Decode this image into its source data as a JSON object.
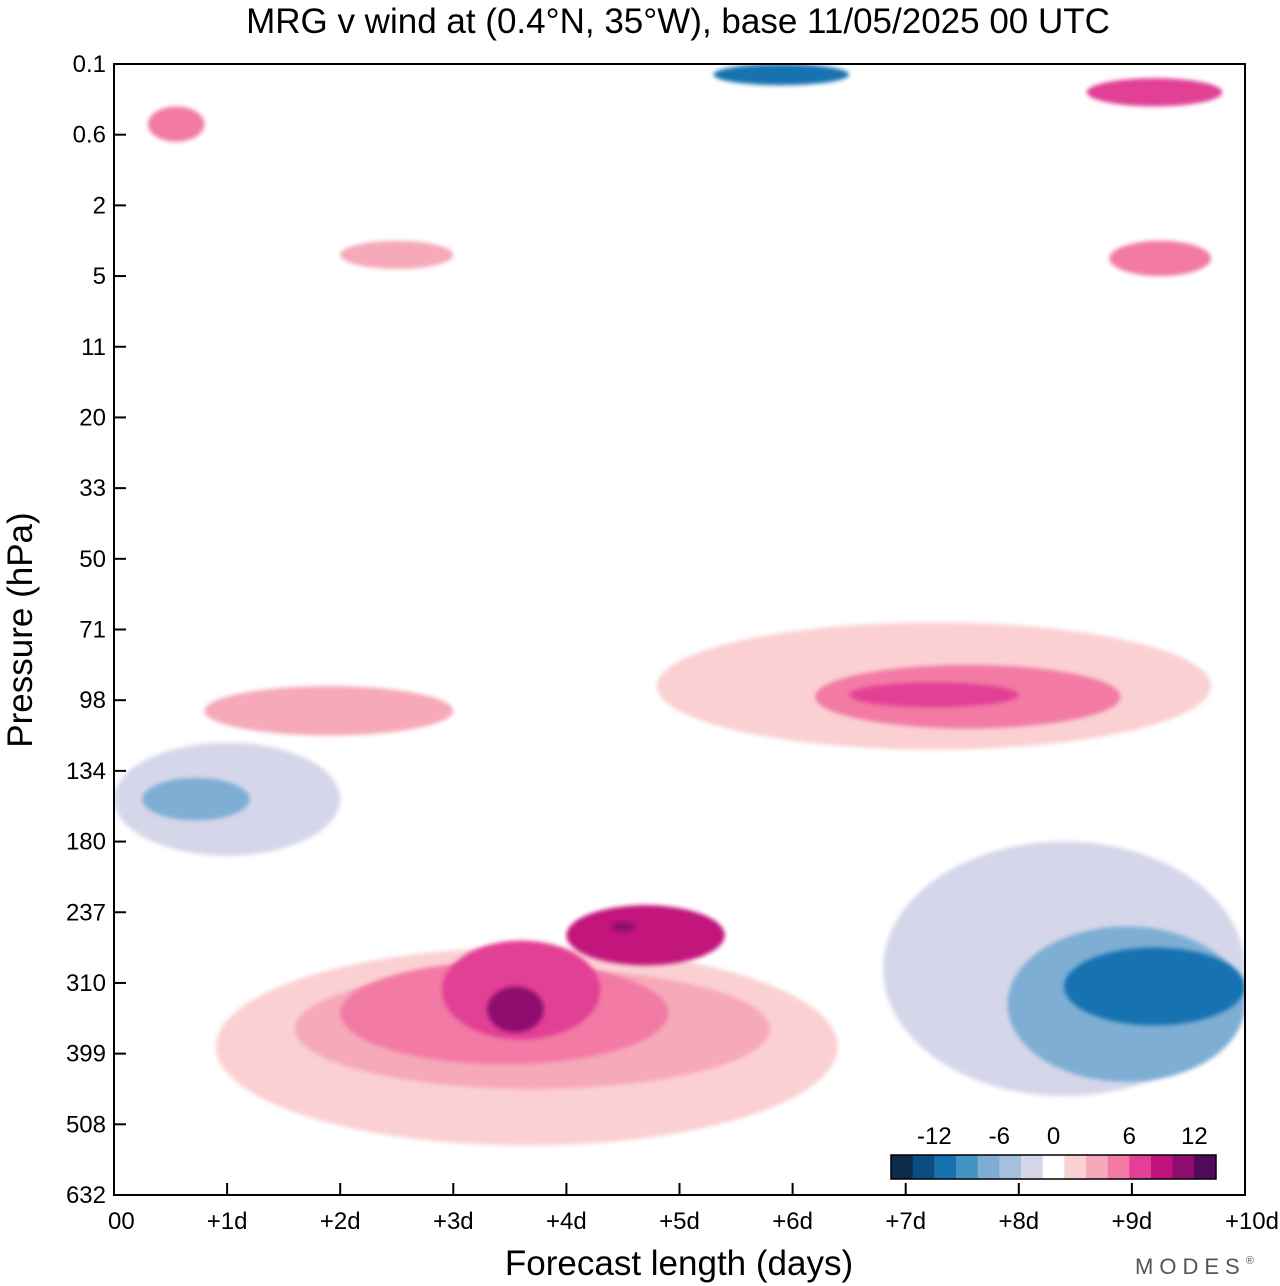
{
  "chart_data": {
    "type": "heatmap",
    "subtype": "filled-contour",
    "title": "MRG v wind at (0.4°N, 35°W),  base 11/05/2025  00 UTC",
    "xlabel": "Forecast length (days)",
    "ylabel": "Pressure (hPa)",
    "x_ticks": [
      "00",
      "+1d",
      "+2d",
      "+3d",
      "+4d",
      "+5d",
      "+6d",
      "+7d",
      "+8d",
      "+9d",
      "+10d"
    ],
    "y_ticks": [
      "0.1",
      "0.6",
      "2",
      "5",
      "11",
      "20",
      "33",
      "50",
      "71",
      "98",
      "134",
      "180",
      "237",
      "310",
      "399",
      "508",
      "632"
    ],
    "xlim": [
      0,
      10
    ],
    "y_axis": "pressure, reversed (top = 0.1 hPa, bottom = 632 hPa)",
    "colorbar": {
      "tick_labels": [
        "-12",
        "-6",
        "0",
        "6",
        "12"
      ],
      "levels": [
        -16,
        -14,
        -12,
        -10,
        -8,
        -6,
        -4,
        -2,
        2,
        4,
        6,
        8,
        10,
        12,
        14,
        16
      ],
      "colors": [
        "#0c2b4d",
        "#0b4d80",
        "#1772b0",
        "#4592c4",
        "#7eaed4",
        "#a6bfdc",
        "#d5d6ea",
        "#ffffff",
        "#fbd0d2",
        "#f6a9b8",
        "#f27aa4",
        "#e24095",
        "#c2127b",
        "#8e0c6e",
        "#4f0b5a"
      ],
      "placement": "bottom-right inside plot"
    },
    "regions": [
      {
        "x": [
          4.0,
          5.4
        ],
        "y": [
          3.25,
          4.1
        ],
        "level": 10
      },
      {
        "x": [
          4.4,
          4.6
        ],
        "y": [
          3.72,
          3.87
        ],
        "level": 12
      },
      {
        "x": [
          3.3,
          3.8
        ],
        "y": [
          2.3,
          2.95
        ],
        "level": 12
      },
      {
        "x": [
          2.9,
          4.3
        ],
        "y": [
          2.2,
          3.6
        ],
        "level": 8
      },
      {
        "x": [
          2.0,
          4.9
        ],
        "y": [
          1.85,
          3.3
        ],
        "level": 6
      },
      {
        "x": [
          1.6,
          5.8
        ],
        "y": [
          1.5,
          3.2
        ],
        "level": 4
      },
      {
        "x": [
          0.9,
          6.4
        ],
        "y": [
          0.7,
          3.5
        ],
        "level": 2
      },
      {
        "x": [
          6.5,
          8.0
        ],
        "y": [
          6.9,
          7.25
        ],
        "level": 8
      },
      {
        "x": [
          6.2,
          8.9
        ],
        "y": [
          6.6,
          7.5
        ],
        "level": 6
      },
      {
        "x": [
          4.8,
          9.7
        ],
        "y": [
          6.3,
          8.1
        ],
        "level": 2
      },
      {
        "x": [
          0.8,
          3.0
        ],
        "y": [
          6.5,
          7.2
        ],
        "level": 4
      },
      {
        "x": [
          8.4,
          10.0
        ],
        "y": [
          2.4,
          3.5
        ],
        "level": -10
      },
      {
        "x": [
          7.9,
          10.0
        ],
        "y": [
          1.6,
          3.8
        ],
        "level": -6
      },
      {
        "x": [
          6.8,
          10.0
        ],
        "y": [
          1.4,
          5.0
        ],
        "level": -2
      },
      {
        "x": [
          0.25,
          1.2
        ],
        "y": [
          5.3,
          5.9
        ],
        "level": -6
      },
      {
        "x": [
          0.0,
          2.0
        ],
        "y": [
          4.8,
          6.4
        ],
        "level": -2
      },
      {
        "x": [
          8.6,
          9.8
        ],
        "y": [
          15.4,
          15.8
        ],
        "level": 8
      },
      {
        "x": [
          0.3,
          0.8
        ],
        "y": [
          14.9,
          15.4
        ],
        "level": 6
      },
      {
        "x": [
          5.3,
          6.5
        ],
        "y": [
          15.7,
          16.0
        ],
        "level": -10
      },
      {
        "x": [
          2.0,
          3.0
        ],
        "y": [
          13.1,
          13.5
        ],
        "level": 4
      },
      {
        "x": [
          8.8,
          9.7
        ],
        "y": [
          13.0,
          13.5
        ],
        "level": 6
      }
    ]
  },
  "branding": {
    "text": "MODES",
    "mark": "®"
  }
}
